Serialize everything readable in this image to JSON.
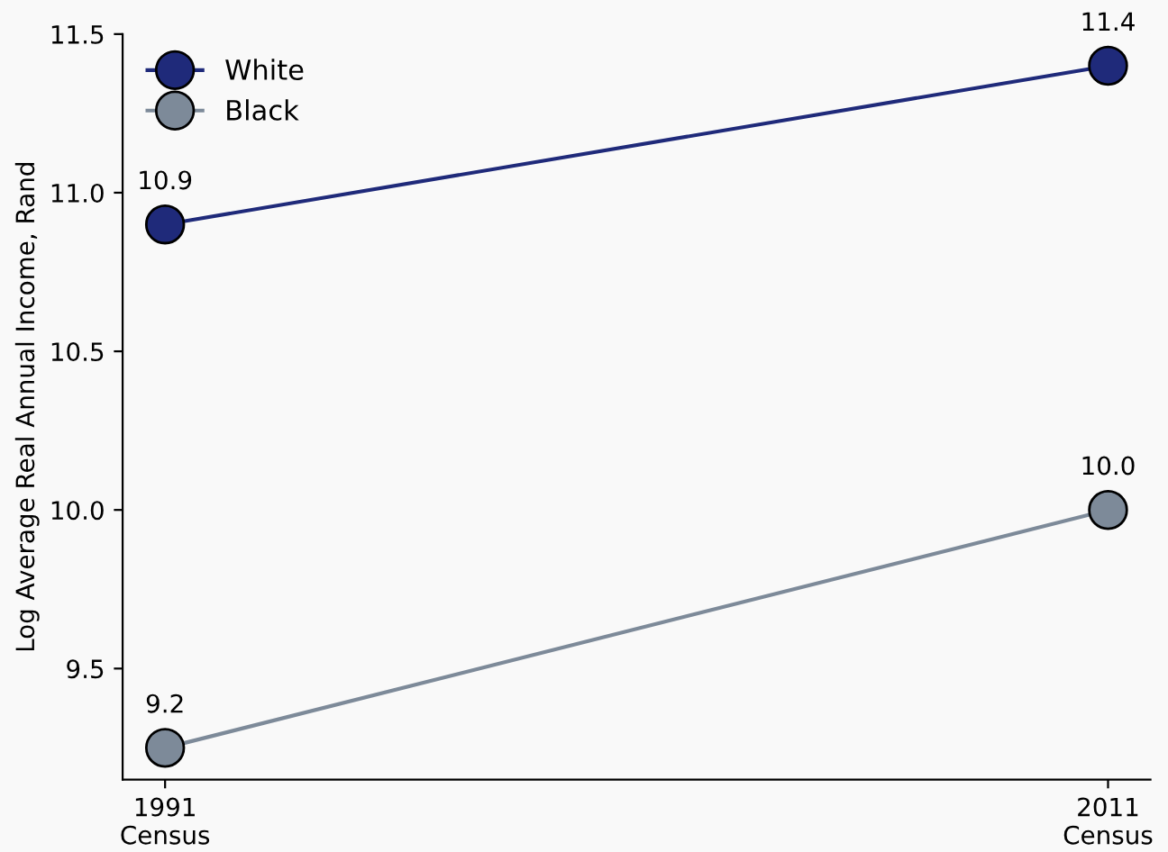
{
  "chart_data": {
    "type": "line",
    "ylabel": "Log Average Real Annual Income, Rand",
    "categories": [
      "1991\nCensus",
      "2011\nCensus"
    ],
    "series": [
      {
        "name": "White",
        "color": "#1f2a7a",
        "values": [
          10.9,
          11.4
        ],
        "value_labels": [
          "10.9",
          "11.4"
        ]
      },
      {
        "name": "Black",
        "color": "#7d8a99",
        "values": [
          9.25,
          10.0
        ],
        "value_labels": [
          "9.2",
          "10.0"
        ]
      }
    ],
    "ylim": [
      9.15,
      11.5
    ],
    "yticks": [
      9.5,
      {
        "value": 10,
        "label": "10.0"
      },
      10.5,
      {
        "value": 11,
        "label": "11.0"
      },
      11.5
    ],
    "marker": "circle",
    "line_style": "solid",
    "legend": "top left",
    "grid": false
  }
}
